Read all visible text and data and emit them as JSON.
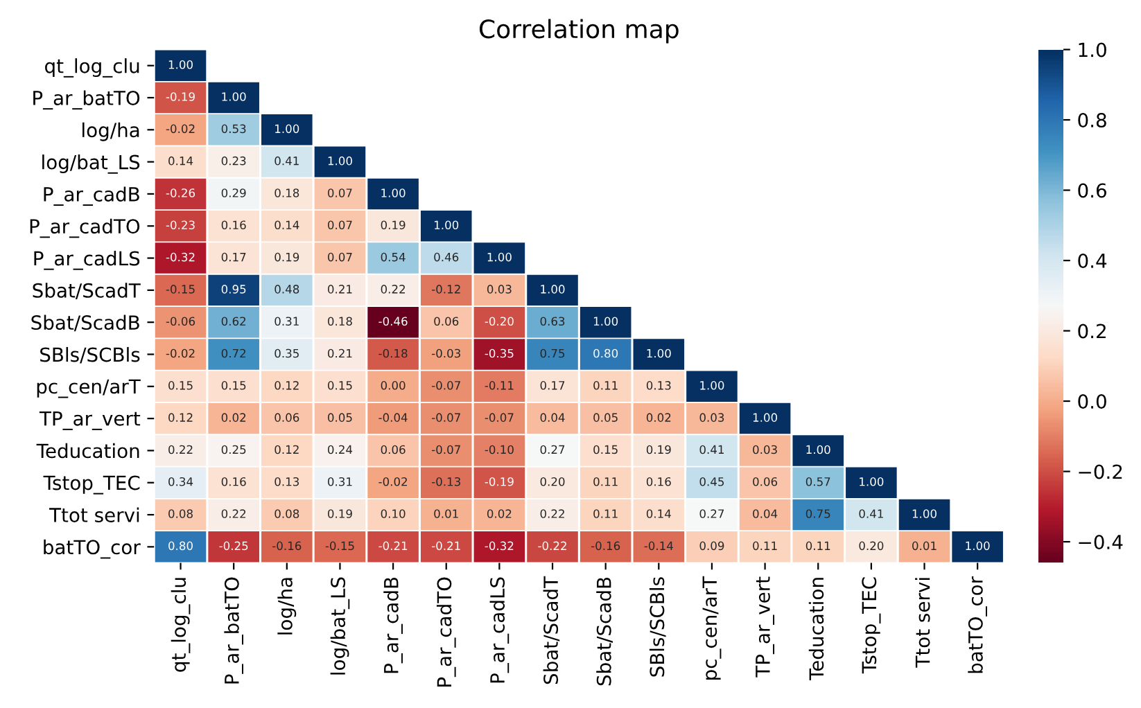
{
  "chart_data": {
    "type": "heatmap",
    "title": "Correlation map",
    "categories": [
      "qt_log_clu",
      "P_ar_batTO",
      "log/ha",
      "log/bat_LS",
      "P_ar_cadB",
      "P_ar_cadTO",
      "P_ar_cadLS",
      "Sbat/ScadT",
      "Sbat/ScadB",
      "SBls/SCBls",
      "pc_cen/arT",
      "TP_ar_vert",
      "Teducation",
      "Tstop_TEC",
      "Ttot servi",
      "batTO_cor"
    ],
    "y_categories": [
      "qt_log_clu",
      "P_ar_batTO",
      "log/ha",
      "log/bat_LS",
      "P_ar_cadB",
      "P_ar_cadTO",
      "P_ar_cadLS",
      "Sbat/ScadT",
      "Sbat/ScadB",
      "SBls/SCBls",
      "pc_cen/arT",
      "TP_ar_vert",
      "Teducation",
      "Tstop_TEC",
      "Ttot servi",
      "batTO_cor"
    ],
    "cells": [
      [
        1.0,
        null,
        null,
        null,
        null,
        null,
        null,
        null,
        null,
        null,
        null,
        null,
        null,
        null,
        null,
        null
      ],
      [
        -0.19,
        1.0,
        null,
        null,
        null,
        null,
        null,
        null,
        null,
        null,
        null,
        null,
        null,
        null,
        null,
        null
      ],
      [
        -0.02,
        0.53,
        1.0,
        null,
        null,
        null,
        null,
        null,
        null,
        null,
        null,
        null,
        null,
        null,
        null,
        null
      ],
      [
        0.14,
        0.23,
        0.41,
        1.0,
        null,
        null,
        null,
        null,
        null,
        null,
        null,
        null,
        null,
        null,
        null,
        null
      ],
      [
        -0.26,
        0.29,
        0.18,
        0.07,
        1.0,
        null,
        null,
        null,
        null,
        null,
        null,
        null,
        null,
        null,
        null,
        null
      ],
      [
        -0.23,
        0.16,
        0.14,
        0.07,
        0.19,
        1.0,
        null,
        null,
        null,
        null,
        null,
        null,
        null,
        null,
        null,
        null
      ],
      [
        -0.32,
        0.17,
        0.19,
        0.07,
        0.54,
        0.46,
        1.0,
        null,
        null,
        null,
        null,
        null,
        null,
        null,
        null,
        null
      ],
      [
        -0.15,
        0.95,
        0.48,
        0.21,
        0.22,
        -0.12,
        0.03,
        1.0,
        null,
        null,
        null,
        null,
        null,
        null,
        null,
        null
      ],
      [
        -0.06,
        0.62,
        0.31,
        0.18,
        -0.46,
        0.06,
        -0.2,
        0.63,
        1.0,
        null,
        null,
        null,
        null,
        null,
        null,
        null
      ],
      [
        -0.02,
        0.72,
        0.35,
        0.21,
        -0.18,
        -0.03,
        -0.35,
        0.75,
        0.8,
        1.0,
        null,
        null,
        null,
        null,
        null,
        null
      ],
      [
        0.15,
        0.15,
        0.12,
        0.15,
        0.0,
        -0.07,
        -0.11,
        0.17,
        0.11,
        0.13,
        1.0,
        null,
        null,
        null,
        null,
        null
      ],
      [
        0.12,
        0.02,
        0.06,
        0.05,
        -0.04,
        -0.07,
        -0.07,
        0.04,
        0.05,
        0.02,
        0.03,
        1.0,
        null,
        null,
        null,
        null
      ],
      [
        0.22,
        0.25,
        0.12,
        0.24,
        0.06,
        -0.07,
        -0.1,
        0.27,
        0.15,
        0.19,
        0.41,
        0.03,
        1.0,
        null,
        null,
        null
      ],
      [
        0.34,
        0.16,
        0.13,
        0.31,
        -0.02,
        -0.13,
        -0.19,
        0.2,
        0.11,
        0.16,
        0.45,
        0.06,
        0.57,
        1.0,
        null,
        null
      ],
      [
        0.08,
        0.22,
        0.08,
        0.19,
        0.1,
        0.01,
        0.02,
        0.22,
        0.11,
        0.14,
        0.27,
        0.04,
        0.75,
        0.41,
        1.0,
        null
      ],
      [
        0.8,
        -0.25,
        -0.16,
        -0.15,
        -0.21,
        -0.21,
        -0.32,
        -0.22,
        -0.16,
        -0.14,
        0.09,
        0.11,
        0.11,
        0.2,
        0.01,
        1.0
      ]
    ],
    "cell_labels": [
      [
        "1.00",
        null,
        null,
        null,
        null,
        null,
        null,
        null,
        null,
        null,
        null,
        null,
        null,
        null,
        null,
        null
      ],
      [
        "-0.19",
        "1.00",
        null,
        null,
        null,
        null,
        null,
        null,
        null,
        null,
        null,
        null,
        null,
        null,
        null,
        null
      ],
      [
        "-0.02",
        "0.53",
        "1.00",
        null,
        null,
        null,
        null,
        null,
        null,
        null,
        null,
        null,
        null,
        null,
        null,
        null
      ],
      [
        "0.14",
        "0.23",
        "0.41",
        "1.00",
        null,
        null,
        null,
        null,
        null,
        null,
        null,
        null,
        null,
        null,
        null,
        null
      ],
      [
        "-0.26",
        "0.29",
        "0.18",
        "0.07",
        "1.00",
        null,
        null,
        null,
        null,
        null,
        null,
        null,
        null,
        null,
        null,
        null
      ],
      [
        "-0.23",
        "0.16",
        "0.14",
        "0.07",
        "0.19",
        "1.00",
        null,
        null,
        null,
        null,
        null,
        null,
        null,
        null,
        null,
        null
      ],
      [
        "-0.32",
        "0.17",
        "0.19",
        "0.07",
        "0.54",
        "0.46",
        "1.00",
        null,
        null,
        null,
        null,
        null,
        null,
        null,
        null,
        null
      ],
      [
        "-0.15",
        "0.95",
        "0.48",
        "0.21",
        "0.22",
        "-0.12",
        "0.03",
        "1.00",
        null,
        null,
        null,
        null,
        null,
        null,
        null,
        null
      ],
      [
        "-0.06",
        "0.62",
        "0.31",
        "0.18",
        "-0.46",
        "0.06",
        "-0.20",
        "0.63",
        "1.00",
        null,
        null,
        null,
        null,
        null,
        null,
        null
      ],
      [
        "-0.02",
        "0.72",
        "0.35",
        "0.21",
        "-0.18",
        "-0.03",
        "-0.35",
        "0.75",
        "0.80",
        "1.00",
        null,
        null,
        null,
        null,
        null,
        null
      ],
      [
        "0.15",
        "0.15",
        "0.12",
        "0.15",
        "0.00",
        "-0.07",
        "-0.11",
        "0.17",
        "0.11",
        "0.13",
        "1.00",
        null,
        null,
        null,
        null,
        null
      ],
      [
        "0.12",
        "0.02",
        "0.06",
        "0.05",
        "-0.04",
        "-0.07",
        "-0.07",
        "0.04",
        "0.05",
        "0.02",
        "0.03",
        "1.00",
        null,
        null,
        null,
        null
      ],
      [
        "0.22",
        "0.25",
        "0.12",
        "0.24",
        "0.06",
        "-0.07",
        "-0.10",
        "0.27",
        "0.15",
        "0.19",
        "0.41",
        "0.03",
        "1.00",
        null,
        null,
        null
      ],
      [
        "0.34",
        "0.16",
        "0.13",
        "0.31",
        "-0.02",
        "-0.13",
        "-0.19",
        "0.20",
        "0.11",
        "0.16",
        "0.45",
        "0.06",
        "0.57",
        "1.00",
        null,
        null
      ],
      [
        "0.08",
        "0.22",
        "0.08",
        "0.19",
        "0.10",
        "0.01",
        "0.02",
        "0.22",
        "0.11",
        "0.14",
        "0.27",
        "0.04",
        "0.75",
        "0.41",
        "1.00",
        null
      ],
      [
        "0.80",
        "-0.25",
        "-0.16",
        "-0.15",
        "-0.21",
        "-0.21",
        "-0.32",
        "-0.22",
        "-0.16",
        "-0.14",
        "0.09",
        "0.11",
        "0.11",
        "0.20",
        "0.01",
        "1.00"
      ]
    ],
    "data_labels": true,
    "clim": [
      -0.46,
      1.0
    ],
    "cticks": [
      {
        "value": -0.4,
        "label": "−0.4"
      },
      {
        "value": -0.2,
        "label": "−0.2"
      },
      {
        "value": 0.0,
        "label": "0.0"
      },
      {
        "value": 0.2,
        "label": "0.2"
      },
      {
        "value": 0.4,
        "label": "0.4"
      },
      {
        "value": 0.6,
        "label": "0.6"
      },
      {
        "value": 0.8,
        "label": "0.8"
      },
      {
        "value": 1.0,
        "label": "1.0"
      }
    ]
  }
}
